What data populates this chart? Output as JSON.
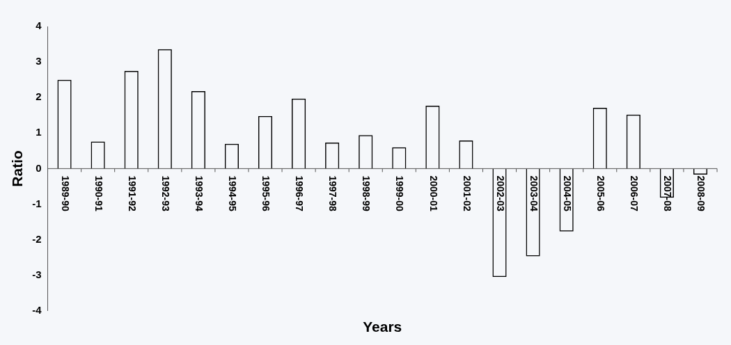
{
  "chart_data": {
    "type": "bar",
    "xlabel": "Years",
    "ylabel": "Ratio",
    "categories": [
      "1989-90",
      "1990-91",
      "1991-92",
      "1992-93",
      "1993-94",
      "1994-95",
      "1995-96",
      "1996-97",
      "1997-98",
      "1998-99",
      "1999-00",
      "2000-01",
      "2001-02",
      "2002-03",
      "2003-04",
      "2004-05",
      "2005-06",
      "2006-07",
      "2007-08",
      "2008-09"
    ],
    "values": [
      2.5,
      0.76,
      2.75,
      3.36,
      2.18,
      0.7,
      1.48,
      1.97,
      0.73,
      0.94,
      0.6,
      1.77,
      0.79,
      -3.05,
      -2.47,
      -1.77,
      1.71,
      1.52,
      -0.82,
      -0.17
    ],
    "color": "#000000",
    "ylim": [
      -4,
      4
    ],
    "yticks": [
      -4,
      -3,
      -2,
      -1,
      0,
      1,
      2,
      3,
      4
    ],
    "grid": false,
    "legend": false
  }
}
